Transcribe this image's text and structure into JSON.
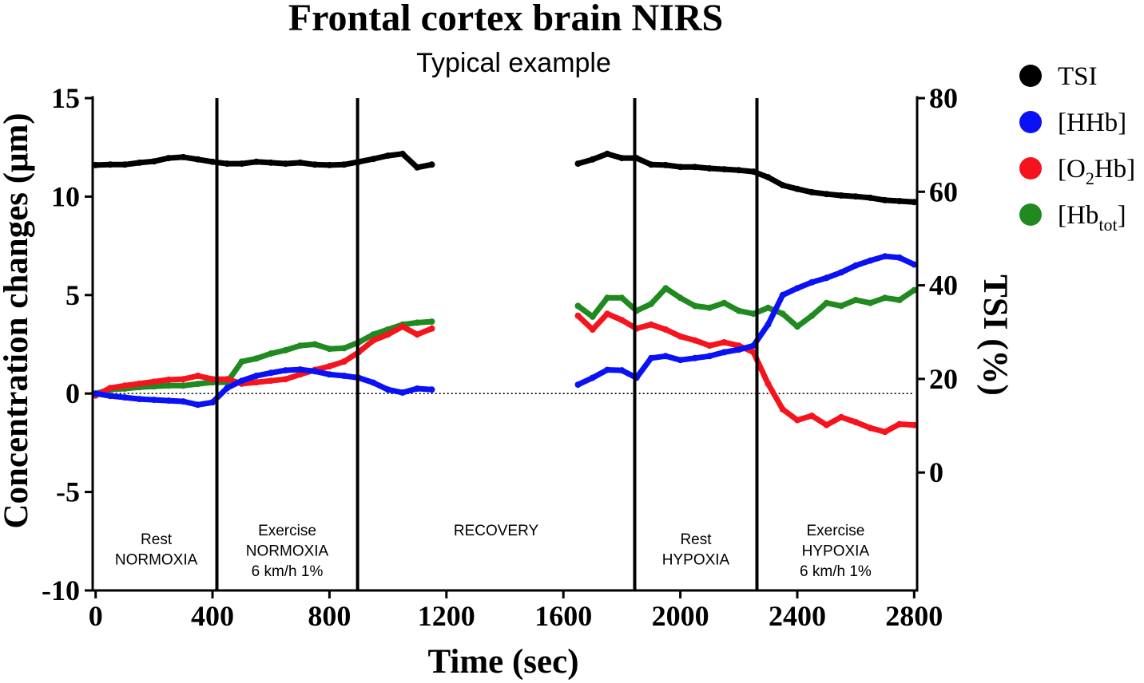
{
  "chart_data": {
    "type": "line",
    "title": "Frontal cortex brain NIRS",
    "subtitle": "Typical example",
    "xlabel": "Time (sec)",
    "ylabel": "Concentration changes (μm)",
    "ylabel_right": "TSI (%)",
    "xlim": [
      -10,
      2810
    ],
    "ylim": [
      -10,
      15
    ],
    "ylim_right": [
      -25.2,
      80
    ],
    "xticks": [
      0,
      400,
      800,
      1200,
      1600,
      2000,
      2400,
      2800
    ],
    "yticks": [
      15,
      10,
      5,
      0,
      -5,
      -10
    ],
    "yticks_right": [
      80,
      60,
      40,
      20,
      0
    ],
    "grid": false,
    "legend_position": "right",
    "reference_line_y": 0,
    "phase_boundaries": [
      415,
      896,
      1844,
      2262
    ],
    "phases": [
      {
        "start": 0,
        "end": 415,
        "label": [
          "Rest",
          "NORMOXIA"
        ]
      },
      {
        "start": 415,
        "end": 896,
        "label": [
          "Exercise",
          "NORMOXIA",
          "6 km/h 1%"
        ]
      },
      {
        "start": 896,
        "end": 1844,
        "label": [
          "RECOVERY"
        ]
      },
      {
        "start": 1844,
        "end": 2262,
        "label": [
          "Rest",
          "HYPOXIA"
        ]
      },
      {
        "start": 2262,
        "end": 2800,
        "label": [
          "Exercise",
          "HYPOXIA",
          "6 km/h 1%"
        ]
      }
    ],
    "x": [
      0,
      50,
      100,
      150,
      200,
      250,
      300,
      350,
      400,
      450,
      500,
      550,
      600,
      650,
      700,
      750,
      800,
      850,
      900,
      950,
      1000,
      1050,
      1100,
      1150,
      1650,
      1700,
      1750,
      1800,
      1850,
      1900,
      1950,
      2000,
      2050,
      2100,
      2150,
      2200,
      2250,
      2300,
      2350,
      2400,
      2450,
      2500,
      2550,
      2600,
      2650,
      2700,
      2750,
      2800
    ],
    "series": [
      {
        "name": "TSI",
        "axis": "right",
        "color": "#000000",
        "values": [
          65.7,
          65.8,
          65.8,
          66.2,
          66.5,
          67.2,
          67.4,
          66.9,
          66.4,
          66.0,
          66.0,
          66.4,
          66.2,
          66.0,
          66.2,
          65.8,
          65.7,
          65.8,
          66.4,
          67.0,
          67.7,
          68.1,
          65.2,
          65.8,
          66.0,
          66.9,
          68.1,
          67.2,
          67.2,
          65.8,
          65.7,
          65.3,
          65.3,
          65.0,
          64.8,
          64.6,
          64.3,
          63.1,
          61.4,
          60.6,
          59.9,
          59.5,
          59.2,
          59.0,
          58.7,
          58.2,
          58.0,
          57.8
        ]
      },
      {
        "name": "[HHb]",
        "axis": "left",
        "color": "#0a12f5",
        "values": [
          0.0,
          -0.12,
          -0.2,
          -0.28,
          -0.32,
          -0.36,
          -0.4,
          -0.57,
          -0.45,
          0.28,
          0.65,
          0.9,
          1.05,
          1.18,
          1.22,
          1.13,
          0.97,
          0.9,
          0.8,
          0.55,
          0.2,
          0.05,
          0.25,
          0.2,
          0.45,
          0.8,
          1.2,
          1.18,
          0.8,
          1.8,
          1.9,
          1.7,
          1.8,
          1.9,
          2.1,
          2.23,
          2.43,
          3.5,
          5.0,
          5.35,
          5.65,
          5.87,
          6.15,
          6.5,
          6.75,
          6.97,
          6.9,
          6.55
        ]
      },
      {
        "name": "[O2Hb]",
        "name_subscript": "2",
        "axis": "left",
        "color": "#f5141e",
        "values": [
          -0.1,
          0.28,
          0.4,
          0.5,
          0.6,
          0.7,
          0.73,
          0.9,
          0.73,
          0.73,
          0.5,
          0.57,
          0.65,
          0.73,
          0.97,
          1.2,
          1.38,
          1.62,
          2.1,
          2.7,
          3.0,
          3.4,
          3.0,
          3.3,
          3.95,
          3.25,
          4.05,
          3.73,
          3.3,
          3.5,
          3.25,
          2.9,
          2.7,
          2.43,
          2.6,
          2.43,
          2.1,
          0.5,
          -0.8,
          -1.35,
          -1.13,
          -1.6,
          -1.2,
          -1.45,
          -1.75,
          -1.95,
          -1.55,
          -1.6
        ]
      },
      {
        "name": "[Hbtot]",
        "name_subscript": "tot",
        "axis": "left",
        "color": "#208a20",
        "values": [
          0.0,
          0.2,
          0.25,
          0.32,
          0.36,
          0.4,
          0.4,
          0.49,
          0.57,
          0.57,
          1.62,
          1.78,
          2.03,
          2.2,
          2.43,
          2.5,
          2.27,
          2.3,
          2.6,
          3.0,
          3.25,
          3.5,
          3.6,
          3.65,
          4.45,
          3.9,
          4.86,
          4.86,
          4.2,
          4.55,
          5.35,
          4.86,
          4.45,
          4.35,
          4.6,
          4.2,
          4.05,
          4.35,
          4.05,
          3.4,
          3.95,
          4.6,
          4.45,
          4.75,
          4.6,
          4.86,
          4.75,
          5.25
        ]
      }
    ]
  }
}
